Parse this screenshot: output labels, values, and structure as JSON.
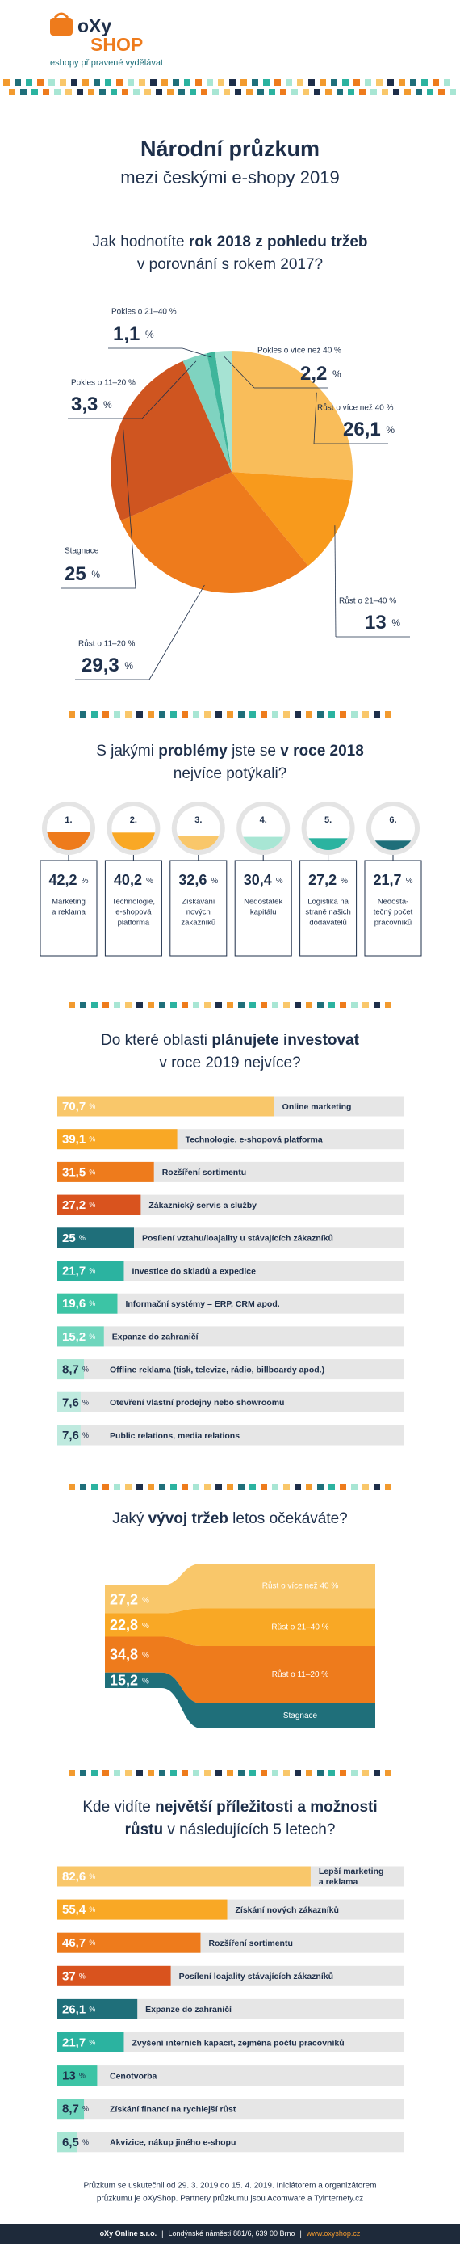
{
  "header": {
    "logo_top": "oXy",
    "logo_bottom": "SHOP",
    "tagline": "eshopy připravené vydělávat"
  },
  "title": [
    "Národní průzkum",
    "mezi českými e-shopy 2019"
  ],
  "chart_data": [
    {
      "type": "pie",
      "title": [
        [
          {
            "text": "Jak hodnotíte "
          },
          {
            "text": "rok 2018 z pohledu tržeb",
            "bold": true
          }
        ],
        [
          {
            "text": "v porovnání s rokem 2017?"
          }
        ]
      ],
      "categories": [
        "Růst o více než 40 %",
        "Růst o 21–40 %",
        "Růst o 11–20 %",
        "Stagnace",
        "Pokles o 11–20 %",
        "Pokles o 21–40 %",
        "Pokles o více než 40 %"
      ],
      "values": [
        26.1,
        13,
        29.3,
        25,
        3.3,
        1.1,
        2.2
      ],
      "value_labels": [
        "26,1 %",
        "13 %",
        "29,3 %",
        "25 %",
        "3,3 %",
        "1,1 %",
        "2,2 %"
      ],
      "colors": [
        "#f9bd5a",
        "#f89a1c",
        "#ee7b1c",
        "#cf5520",
        "#7fd3c0",
        "#3fb59b",
        "#a6e3d3"
      ]
    },
    {
      "type": "gauge",
      "title": [
        [
          {
            "text": "S jakými "
          },
          {
            "text": "problémy",
            "bold": true
          },
          {
            "text": " jste se "
          },
          {
            "text": "v roce 2018",
            "bold": true
          }
        ],
        [
          {
            "text": "nejvíce potýkali?"
          }
        ]
      ],
      "ranks": [
        "1.",
        "2.",
        "3.",
        "4.",
        "5.",
        "6."
      ],
      "categories": [
        [
          "Marketing",
          "a reklama"
        ],
        [
          "Technologie,",
          "e-shopová",
          "platforma"
        ],
        [
          "Získávání",
          "nových",
          "zákazníků"
        ],
        [
          "Nedostatek",
          "kapitálu"
        ],
        [
          "Logistika na",
          "straně našich",
          "dodavatelů"
        ],
        [
          "Nedosta-",
          "tečný počet",
          "pracovníků"
        ]
      ],
      "values": [
        42.2,
        40.2,
        32.6,
        30.4,
        27.2,
        21.7
      ],
      "value_labels": [
        "42,2 %",
        "40,2 %",
        "32,6 %",
        "30,4 %",
        "27,2 %",
        "21,7 %"
      ],
      "colors": [
        "#ee7b1c",
        "#f9a825",
        "#f9c76a",
        "#a8e6d4",
        "#2bb3a0",
        "#1f6f7a"
      ]
    },
    {
      "type": "hbar",
      "title": [
        [
          {
            "text": "Do které oblasti "
          },
          {
            "text": "plánujete investovat",
            "bold": true
          }
        ],
        [
          {
            "text": "v roce 2019 nejvíce?"
          }
        ]
      ],
      "categories": [
        "Online marketing",
        "Technologie, e-shopová platforma",
        "Rozšíření sortimentu",
        "Zákaznický servis a služby",
        "Posílení vztahu/loajality u stávajících zákazníků",
        "Investice do skladů a expedice",
        "Informační systémy – ERP, CRM apod.",
        "Expanze do zahraničí",
        "Offline reklama (tisk, televize, rádio, billboardy apod.)",
        "Otevření vlastní prodejny nebo showroomu",
        "Public relations, media relations"
      ],
      "values": [
        70.7,
        39.1,
        31.5,
        27.2,
        25,
        21.7,
        19.6,
        15.2,
        8.7,
        7.6,
        7.6
      ],
      "value_labels": [
        "70,7 %",
        "39,1 %",
        "31,5 %",
        "27,2 %",
        "25 %",
        "21,7 %",
        "19,6 %",
        "15,2 %",
        "8,7 %",
        "7,6 %",
        "7,6 %"
      ],
      "colors": [
        "#f9c76a",
        "#f9a825",
        "#ee7b1c",
        "#d9531e",
        "#1f6f7a",
        "#2bb3a0",
        "#3cc4a5",
        "#6fd6bd",
        "#a8e6d4",
        "#bfeadf",
        "#bfeadf"
      ]
    },
    {
      "type": "funnel",
      "title": [
        [
          {
            "text": "Jaký "
          },
          {
            "text": "vývoj tržeb",
            "bold": true
          },
          {
            "text": " letos očekáváte?"
          }
        ]
      ],
      "categories": [
        "Růst o více než 40 %",
        "Růst o 21–40 %",
        "Růst o 11–20 %",
        "Stagnace"
      ],
      "values": [
        27.2,
        22.8,
        34.8,
        15.2
      ],
      "value_labels": [
        "27,2 %",
        "22,8 %",
        "34,8 %",
        "15,2 %"
      ],
      "colors": [
        "#f9c76a",
        "#f9a825",
        "#ee7b1c",
        "#1f6f7a"
      ]
    },
    {
      "type": "hbar",
      "title": [
        [
          {
            "text": "Kde vidíte "
          },
          {
            "text": "největší příležitosti a možnosti",
            "bold": true
          }
        ],
        [
          {
            "text": "růstu",
            "bold": true
          },
          {
            "text": " v následujících 5 letech?"
          }
        ]
      ],
      "categories": [
        "Lepší marketing a reklama",
        "Získání nových zákazníků",
        "Rozšíření sortimentu",
        "Posílení loajality stávajících zákazníků",
        "Expanze do zahraničí",
        "Zvýšení interních kapacit, zejména počtu pracovníků",
        "Cenotvorba",
        "Získání financí na rychlejší růst",
        "Akvizice, nákup jiného e-shopu"
      ],
      "values": [
        82.6,
        55.4,
        46.7,
        37,
        26.1,
        21.7,
        13,
        8.7,
        6.5
      ],
      "value_labels": [
        "82,6 %",
        "55,4 %",
        "46,7 %",
        "37 %",
        "26,1 %",
        "21,7 %",
        "13 %",
        "8,7 %",
        "6,5 %"
      ],
      "colors": [
        "#f9c76a",
        "#f9a825",
        "#ee7b1c",
        "#d9531e",
        "#1f6f7a",
        "#2bb3a0",
        "#3cc4a5",
        "#6fd6bd",
        "#a8e6d4"
      ]
    }
  ],
  "footer": {
    "note": [
      "Průzkum se uskutečnil od 29. 3. 2019 do 15. 4. 2019. Iniciátorem a organizátorem",
      "průzkumu je oXyShop. Partnery průzkumu jsou Acomware a Tyinternety.cz"
    ],
    "bar": [
      "oXy Online s.r.o.",
      "|",
      "Londýnské náměstí 881/6, 639 00 Brno",
      "|",
      "www.oxyshop.cz"
    ]
  }
}
